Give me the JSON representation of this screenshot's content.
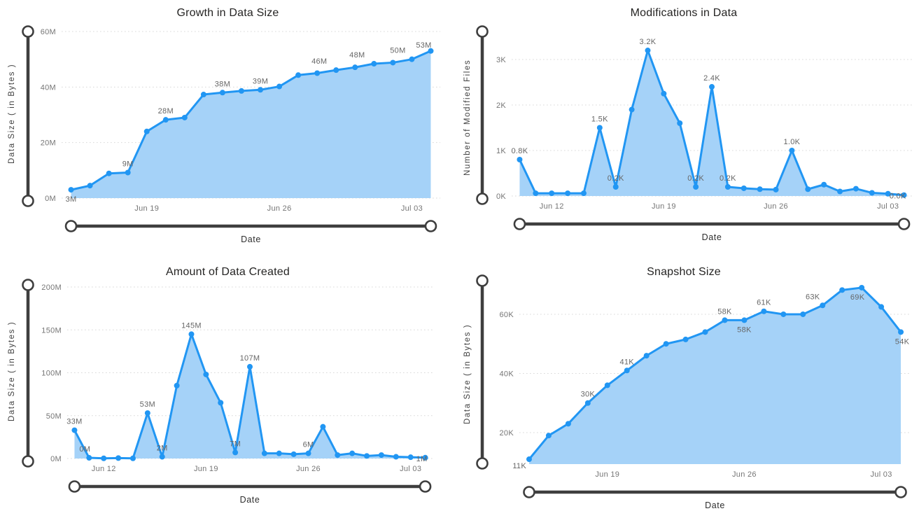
{
  "colors": {
    "line": "#2196F3",
    "area_fill": "#A5D2F8",
    "grid": "#D8D8D8",
    "slider": "#3E3E3E",
    "slider_handle_fill": "#FFFFFF",
    "tick_text": "#757575",
    "data_label_text": "#666666",
    "axis_title_text": "#3F3F3F",
    "chart_title_text": "#252423",
    "background": "#FFFFFF"
  },
  "chart_data": [
    {
      "id": "growth-in-data-size",
      "type": "area",
      "title": "Growth in Data Size",
      "xlabel": "Date",
      "ylabel": "Data Size ( in Bytes )",
      "legend": "none",
      "grid": "dotted-horizontal",
      "values": [
        3,
        4.5,
        8.9,
        9.2,
        24,
        28.2,
        29,
        37.3,
        38,
        38.6,
        39,
        40.2,
        44.3,
        45,
        46.1,
        47.1,
        48.4,
        48.8,
        50,
        53
      ],
      "ylim": [
        0,
        60.76
      ],
      "y_ticks": [
        {
          "v": 0,
          "label": "0M"
        },
        {
          "v": 20,
          "label": "20M"
        },
        {
          "v": 40,
          "label": "40M"
        },
        {
          "v": 60,
          "label": "60M"
        }
      ],
      "x_ticks": [
        {
          "i": 4,
          "label": "Jun 19"
        },
        {
          "i": 11,
          "label": "Jun 26"
        },
        {
          "i": 18,
          "label": "Jul 03"
        }
      ],
      "point_labels": [
        {
          "i": 0,
          "text": "3M",
          "pos": "below"
        },
        {
          "i": 3,
          "text": "9M"
        },
        {
          "i": 5,
          "text": "28M"
        },
        {
          "i": 8,
          "text": "38M"
        },
        {
          "i": 10,
          "text": "39M"
        },
        {
          "i": 14,
          "text": "46M",
          "dx": -24
        },
        {
          "i": 16,
          "text": "48M",
          "dx": -24
        },
        {
          "i": 18,
          "text": "50M",
          "dx": -20
        },
        {
          "i": 19,
          "text": "53M",
          "dx": -10,
          "dy": 4
        }
      ]
    },
    {
      "id": "modifications-in-data",
      "type": "area",
      "title": "Modifications in Data",
      "xlabel": "Date",
      "ylabel": "Number of Modified Files",
      "legend": "none",
      "grid": "dotted-horizontal",
      "values": [
        0.8,
        0.06,
        0.06,
        0.06,
        0.06,
        1.5,
        0.2,
        1.9,
        3.2,
        2.25,
        1.6,
        0.2,
        2.4,
        0.2,
        0.17,
        0.15,
        0.14,
        1.0,
        0.15,
        0.25,
        0.1,
        0.16,
        0.07,
        0.05,
        0.02
      ],
      "ylim": [
        0,
        3.462
      ],
      "y_ticks": [
        {
          "v": 0,
          "label": "0K"
        },
        {
          "v": 1,
          "label": "1K"
        },
        {
          "v": 2,
          "label": "2K"
        },
        {
          "v": 3,
          "label": "3K"
        }
      ],
      "x_ticks": [
        {
          "i": 2,
          "label": "Jun 12"
        },
        {
          "i": 9,
          "label": "Jun 19"
        },
        {
          "i": 16,
          "label": "Jun 26"
        },
        {
          "i": 23,
          "label": "Jul 03"
        }
      ],
      "point_labels": [
        {
          "i": 0,
          "text": "0.8K"
        },
        {
          "i": 5,
          "text": "1.5K"
        },
        {
          "i": 6,
          "text": "0.2K"
        },
        {
          "i": 8,
          "text": "3.2K"
        },
        {
          "i": 11,
          "text": "0.2K"
        },
        {
          "i": 12,
          "text": "2.4K"
        },
        {
          "i": 13,
          "text": "0.2K"
        },
        {
          "i": 17,
          "text": "1.0K"
        },
        {
          "i": 24,
          "text": "0.0K",
          "pos": "left"
        }
      ]
    },
    {
      "id": "amount-of-data-created",
      "type": "area",
      "title": "Amount of Data Created",
      "xlabel": "Date",
      "ylabel": "Data Size ( in Bytes )",
      "legend": "none",
      "grid": "dotted-horizontal",
      "values": [
        33,
        0.8,
        0.2,
        0.5,
        0.2,
        53,
        2,
        85,
        145,
        98,
        65,
        7,
        107,
        6,
        6,
        5,
        6,
        37,
        4,
        6,
        3,
        4,
        2,
        1.5,
        1
      ],
      "ylim": [
        0,
        204.1
      ],
      "y_ticks": [
        {
          "v": 0,
          "label": "0M"
        },
        {
          "v": 50,
          "label": "50M"
        },
        {
          "v": 100,
          "label": "100M"
        },
        {
          "v": 150,
          "label": "150M"
        },
        {
          "v": 200,
          "label": "200M"
        }
      ],
      "x_ticks": [
        {
          "i": 2,
          "label": "Jun 12"
        },
        {
          "i": 9,
          "label": "Jun 19"
        },
        {
          "i": 16,
          "label": "Jun 26"
        },
        {
          "i": 23,
          "label": "Jul 03"
        }
      ],
      "point_labels": [
        {
          "i": 0,
          "text": "33M"
        },
        {
          "i": 1,
          "text": "0M",
          "dx": -6
        },
        {
          "i": 5,
          "text": "53M"
        },
        {
          "i": 6,
          "text": "2M"
        },
        {
          "i": 8,
          "text": "145M"
        },
        {
          "i": 11,
          "text": "7M"
        },
        {
          "i": 12,
          "text": "107M"
        },
        {
          "i": 16,
          "text": "6M"
        },
        {
          "i": 24,
          "text": "1M",
          "pos": "left"
        }
      ]
    },
    {
      "id": "snapshot-size",
      "type": "area",
      "title": "Snapshot Size",
      "xlabel": "Date",
      "ylabel": "Data Size ( in Bytes )",
      "legend": "none",
      "grid": "dotted-horizontal",
      "values": [
        11,
        19,
        23,
        30,
        36,
        41,
        46,
        50,
        51.5,
        54,
        58,
        58,
        61,
        60,
        60,
        63,
        68.2,
        69,
        62.5,
        54
      ],
      "ylim": [
        9.35,
        70.17
      ],
      "y_ticks": [
        {
          "v": 20,
          "label": "20K"
        },
        {
          "v": 40,
          "label": "40K"
        },
        {
          "v": 60,
          "label": "60K"
        }
      ],
      "x_ticks": [
        {
          "i": 4,
          "label": "Jun 19"
        },
        {
          "i": 11,
          "label": "Jun 26"
        },
        {
          "i": 18,
          "label": "Jul 03"
        }
      ],
      "point_labels": [
        {
          "i": 0,
          "text": "11K",
          "pos": "left-down"
        },
        {
          "i": 3,
          "text": "30K"
        },
        {
          "i": 5,
          "text": "41K"
        },
        {
          "i": 10,
          "text": "58K"
        },
        {
          "i": 11,
          "text": "58K",
          "pos": "below"
        },
        {
          "i": 12,
          "text": "61K"
        },
        {
          "i": 15,
          "text": "63K",
          "dx": -14
        },
        {
          "i": 17,
          "text": "69K",
          "pos": "below",
          "dx": -6
        },
        {
          "i": 19,
          "text": "54K",
          "pos": "below",
          "dx": 2
        }
      ]
    }
  ]
}
